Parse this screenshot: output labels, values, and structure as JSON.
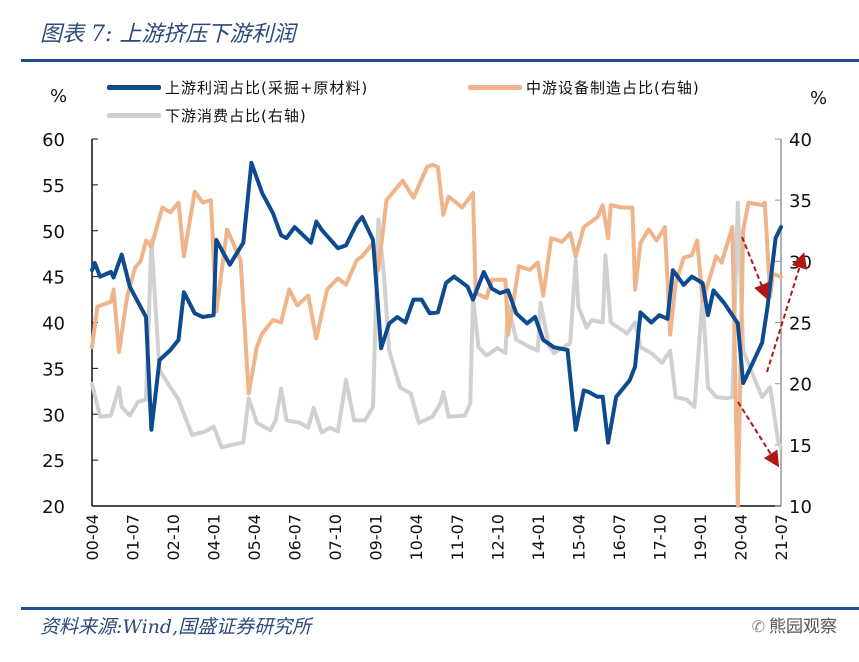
{
  "title": "图表 7:  上游挤压下游利润",
  "source": "资料来源:Wind,国盛证券研究所",
  "watermark": "熊园观察",
  "chart_data": {
    "type": "line",
    "title": "图表 7:  上游挤压下游利润",
    "left_unit": "%",
    "right_unit": "%",
    "left_ylim": [
      20,
      60
    ],
    "right_ylim": [
      10,
      40
    ],
    "left_ticks": [
      "20",
      "25",
      "30",
      "35",
      "40",
      "45",
      "50",
      "55",
      "60"
    ],
    "right_ticks": [
      "10",
      "15",
      "20",
      "25",
      "30",
      "35",
      "40"
    ],
    "x_range": [
      "2000-04",
      "2021-07"
    ],
    "x_ticks": [
      "00-04",
      "01-07",
      "02-10",
      "04-01",
      "05-04",
      "06-07",
      "07-10",
      "09-01",
      "10-04",
      "11-07",
      "12-10",
      "14-01",
      "15-04",
      "16-07",
      "17-10",
      "19-01",
      "20-04",
      "21-07"
    ],
    "grid": false,
    "legend_position": "top",
    "annotations": "three red dashed arrows near 2020-2021",
    "series": [
      {
        "name": "上游利润占比(采掘+原材料)",
        "axis": "left",
        "color": "#0d4a8f",
        "points": [
          [
            "2000-04",
            45.7
          ],
          [
            "2000-05",
            46.5
          ],
          [
            "2000-07",
            45.0
          ],
          [
            "2000-11",
            45.5
          ],
          [
            "2000-12",
            44.9
          ],
          [
            "2001-03",
            47.4
          ],
          [
            "2001-06",
            43.9
          ],
          [
            "2001-10",
            41.7
          ],
          [
            "2001-12",
            40.6
          ],
          [
            "2002-02",
            28.3
          ],
          [
            "2002-05",
            35.9
          ],
          [
            "2002-09",
            37.0
          ],
          [
            "2002-12",
            38.1
          ],
          [
            "2003-02",
            43.3
          ],
          [
            "2003-06",
            41.0
          ],
          [
            "2003-09",
            40.6
          ],
          [
            "2004-01",
            40.8
          ],
          [
            "2004-02",
            49.0
          ],
          [
            "2004-07",
            46.3
          ],
          [
            "2004-12",
            48.7
          ],
          [
            "2005-03",
            57.4
          ],
          [
            "2005-07",
            54.1
          ],
          [
            "2005-11",
            51.9
          ],
          [
            "2006-02",
            49.5
          ],
          [
            "2006-04",
            49.2
          ],
          [
            "2006-07",
            50.4
          ],
          [
            "2007-01",
            48.7
          ],
          [
            "2007-03",
            51.0
          ],
          [
            "2007-05",
            50.1
          ],
          [
            "2007-11",
            48.1
          ],
          [
            "2008-02",
            48.4
          ],
          [
            "2008-06",
            50.8
          ],
          [
            "2008-08",
            51.5
          ],
          [
            "2008-12",
            49.0
          ],
          [
            "2009-03",
            37.2
          ],
          [
            "2009-06",
            39.9
          ],
          [
            "2009-09",
            40.6
          ],
          [
            "2009-12",
            40.0
          ],
          [
            "2010-03",
            42.5
          ],
          [
            "2010-06",
            42.5
          ],
          [
            "2010-09",
            41.0
          ],
          [
            "2010-12",
            41.1
          ],
          [
            "2011-03",
            44.3
          ],
          [
            "2011-06",
            45.0
          ],
          [
            "2011-11",
            43.9
          ],
          [
            "2012-01",
            42.5
          ],
          [
            "2012-05",
            45.5
          ],
          [
            "2012-08",
            43.7
          ],
          [
            "2012-11",
            43.2
          ],
          [
            "2013-02",
            43.5
          ],
          [
            "2013-05",
            41.0
          ],
          [
            "2013-09",
            39.9
          ],
          [
            "2013-12",
            40.6
          ],
          [
            "2014-03",
            38.1
          ],
          [
            "2014-07",
            37.3
          ],
          [
            "2014-12",
            37.0
          ],
          [
            "2015-03",
            28.3
          ],
          [
            "2015-06",
            32.6
          ],
          [
            "2015-08",
            32.4
          ],
          [
            "2015-11",
            31.9
          ],
          [
            "2016-01",
            31.9
          ],
          [
            "2016-03",
            26.9
          ],
          [
            "2016-06",
            31.9
          ],
          [
            "2016-11",
            33.7
          ],
          [
            "2017-01",
            35.2
          ],
          [
            "2017-03",
            41.1
          ],
          [
            "2017-07",
            40.0
          ],
          [
            "2017-10",
            40.8
          ],
          [
            "2018-01",
            40.4
          ],
          [
            "2018-03",
            45.7
          ],
          [
            "2018-07",
            44.1
          ],
          [
            "2018-10",
            45.0
          ],
          [
            "2019-02",
            44.3
          ],
          [
            "2019-04",
            40.8
          ],
          [
            "2019-06",
            43.5
          ],
          [
            "2019-10",
            42.1
          ],
          [
            "2020-03",
            39.9
          ],
          [
            "2020-05",
            33.4
          ],
          [
            "2020-09",
            35.9
          ],
          [
            "2020-12",
            37.8
          ],
          [
            "2021-02",
            41.7
          ],
          [
            "2021-05",
            49.2
          ],
          [
            "2021-07",
            50.4
          ]
        ]
      },
      {
        "name": "中游设备制造占比(右轴)",
        "axis": "right",
        "color": "#f0b48a",
        "points": [
          [
            "2000-04",
            23.0
          ],
          [
            "2000-06",
            26.3
          ],
          [
            "2000-11",
            26.7
          ],
          [
            "2000-12",
            27.7
          ],
          [
            "2001-02",
            22.6
          ],
          [
            "2001-05",
            27.1
          ],
          [
            "2001-08",
            29.5
          ],
          [
            "2001-10",
            30.0
          ],
          [
            "2001-12",
            31.7
          ],
          [
            "2002-02",
            31.2
          ],
          [
            "2002-04",
            32.8
          ],
          [
            "2002-06",
            34.4
          ],
          [
            "2002-09",
            34.0
          ],
          [
            "2002-12",
            34.8
          ],
          [
            "2003-02",
            30.4
          ],
          [
            "2003-06",
            35.7
          ],
          [
            "2003-09",
            34.8
          ],
          [
            "2003-12",
            35.0
          ],
          [
            "2004-02",
            25.9
          ],
          [
            "2004-06",
            32.6
          ],
          [
            "2004-11",
            30.1
          ],
          [
            "2005-02",
            19.2
          ],
          [
            "2005-05",
            23.0
          ],
          [
            "2005-07",
            24.1
          ],
          [
            "2005-11",
            25.2
          ],
          [
            "2006-02",
            25.0
          ],
          [
            "2006-05",
            27.7
          ],
          [
            "2006-08",
            26.4
          ],
          [
            "2006-12",
            27.2
          ],
          [
            "2007-03",
            23.7
          ],
          [
            "2007-07",
            27.7
          ],
          [
            "2007-11",
            28.6
          ],
          [
            "2008-02",
            28.1
          ],
          [
            "2008-06",
            30.1
          ],
          [
            "2008-08",
            30.4
          ],
          [
            "2008-12",
            31.5
          ],
          [
            "2009-02",
            29.3
          ],
          [
            "2009-05",
            35.0
          ],
          [
            "2009-11",
            36.6
          ],
          [
            "2010-03",
            35.2
          ],
          [
            "2010-08",
            37.7
          ],
          [
            "2010-10",
            37.9
          ],
          [
            "2010-12",
            37.7
          ],
          [
            "2011-02",
            33.8
          ],
          [
            "2011-04",
            35.3
          ],
          [
            "2011-09",
            34.4
          ],
          [
            "2012-01",
            35.6
          ],
          [
            "2012-02",
            27.4
          ],
          [
            "2012-06",
            27.0
          ],
          [
            "2012-08",
            28.5
          ],
          [
            "2013-01",
            28.5
          ],
          [
            "2013-02",
            24.0
          ],
          [
            "2013-06",
            29.6
          ],
          [
            "2013-10",
            29.3
          ],
          [
            "2014-01",
            29.9
          ],
          [
            "2014-03",
            27.2
          ],
          [
            "2014-06",
            31.9
          ],
          [
            "2014-10",
            31.6
          ],
          [
            "2015-01",
            32.3
          ],
          [
            "2015-03",
            30.4
          ],
          [
            "2015-06",
            32.8
          ],
          [
            "2015-11",
            33.6
          ],
          [
            "2016-01",
            34.6
          ],
          [
            "2016-03",
            31.9
          ],
          [
            "2016-04",
            34.6
          ],
          [
            "2016-08",
            34.4
          ],
          [
            "2016-12",
            34.4
          ],
          [
            "2017-01",
            27.7
          ],
          [
            "2017-03",
            31.5
          ],
          [
            "2017-06",
            32.6
          ],
          [
            "2017-09",
            31.7
          ],
          [
            "2017-12",
            32.8
          ],
          [
            "2018-02",
            24.0
          ],
          [
            "2018-04",
            28.2
          ],
          [
            "2018-07",
            30.3
          ],
          [
            "2018-10",
            30.5
          ],
          [
            "2018-12",
            31.7
          ],
          [
            "2019-02",
            26.8
          ],
          [
            "2019-04",
            28.2
          ],
          [
            "2019-07",
            30.4
          ],
          [
            "2019-09",
            29.9
          ],
          [
            "2020-01",
            32.8
          ],
          [
            "2020-03",
            10.0
          ],
          [
            "2020-05",
            32.6
          ],
          [
            "2020-07",
            34.8
          ],
          [
            "2020-12",
            34.6
          ],
          [
            "2021-01",
            34.8
          ],
          [
            "2021-03",
            27.1
          ],
          [
            "2021-04",
            29.0
          ],
          [
            "2021-07",
            28.7
          ]
        ]
      },
      {
        "name": "下游消费占比(右轴)",
        "axis": "right",
        "color": "#d0d0d0",
        "points": [
          [
            "2000-04",
            20.0
          ],
          [
            "2000-07",
            17.3
          ],
          [
            "2000-11",
            17.4
          ],
          [
            "2001-02",
            19.7
          ],
          [
            "2001-03",
            18.1
          ],
          [
            "2001-06",
            17.4
          ],
          [
            "2001-09",
            18.5
          ],
          [
            "2001-12",
            18.7
          ],
          [
            "2002-02",
            31.7
          ],
          [
            "2002-05",
            21.1
          ],
          [
            "2002-09",
            19.7
          ],
          [
            "2002-12",
            18.7
          ],
          [
            "2003-05",
            15.8
          ],
          [
            "2003-10",
            16.1
          ],
          [
            "2004-01",
            16.5
          ],
          [
            "2004-04",
            14.8
          ],
          [
            "2004-10",
            15.1
          ],
          [
            "2004-12",
            15.2
          ],
          [
            "2005-02",
            18.8
          ],
          [
            "2005-05",
            16.8
          ],
          [
            "2005-10",
            16.2
          ],
          [
            "2005-12",
            17.0
          ],
          [
            "2006-02",
            19.6
          ],
          [
            "2006-04",
            17.0
          ],
          [
            "2006-09",
            16.8
          ],
          [
            "2006-12",
            16.4
          ],
          [
            "2007-02",
            18.0
          ],
          [
            "2007-05",
            16.0
          ],
          [
            "2007-08",
            16.4
          ],
          [
            "2007-11",
            16.1
          ],
          [
            "2008-02",
            20.3
          ],
          [
            "2008-05",
            17.0
          ],
          [
            "2008-09",
            17.0
          ],
          [
            "2008-12",
            18.1
          ],
          [
            "2009-02",
            33.4
          ],
          [
            "2009-04",
            29.0
          ],
          [
            "2009-06",
            22.7
          ],
          [
            "2009-10",
            19.7
          ],
          [
            "2010-02",
            19.2
          ],
          [
            "2010-05",
            16.8
          ],
          [
            "2010-10",
            17.3
          ],
          [
            "2011-01",
            18.4
          ],
          [
            "2011-02",
            19.3
          ],
          [
            "2011-04",
            17.3
          ],
          [
            "2011-10",
            17.4
          ],
          [
            "2011-12",
            18.4
          ],
          [
            "2012-01",
            27.1
          ],
          [
            "2012-03",
            23.0
          ],
          [
            "2012-06",
            22.3
          ],
          [
            "2012-10",
            22.9
          ],
          [
            "2013-01",
            22.5
          ],
          [
            "2013-02",
            26.4
          ],
          [
            "2013-05",
            23.6
          ],
          [
            "2013-10",
            23.0
          ],
          [
            "2014-01",
            22.7
          ],
          [
            "2014-02",
            26.6
          ],
          [
            "2014-05",
            23.2
          ],
          [
            "2014-07",
            22.5
          ],
          [
            "2014-10",
            22.9
          ],
          [
            "2015-01",
            23.3
          ],
          [
            "2015-03",
            30.1
          ],
          [
            "2015-04",
            26.3
          ],
          [
            "2015-07",
            24.6
          ],
          [
            "2015-09",
            25.2
          ],
          [
            "2016-01",
            25.0
          ],
          [
            "2016-02",
            30.5
          ],
          [
            "2016-04",
            25.0
          ],
          [
            "2016-10",
            24.1
          ],
          [
            "2017-01",
            25.0
          ],
          [
            "2017-03",
            23.0
          ],
          [
            "2017-07",
            22.5
          ],
          [
            "2017-11",
            21.7
          ],
          [
            "2018-02",
            22.7
          ],
          [
            "2018-04",
            18.9
          ],
          [
            "2018-08",
            18.7
          ],
          [
            "2018-11",
            18.1
          ],
          [
            "2019-02",
            27.1
          ],
          [
            "2019-04",
            19.7
          ],
          [
            "2019-07",
            18.9
          ],
          [
            "2019-11",
            18.8
          ],
          [
            "2020-01",
            18.9
          ],
          [
            "2020-03",
            34.8
          ],
          [
            "2020-05",
            22.7
          ],
          [
            "2020-09",
            20.5
          ],
          [
            "2020-12",
            18.9
          ],
          [
            "2021-03",
            19.7
          ],
          [
            "2021-06",
            15.2
          ],
          [
            "2021-07",
            14.8
          ]
        ]
      }
    ]
  },
  "colors": {
    "title": "#2b4a7a",
    "rule": "#1f4e8c",
    "arrow": "#b01818"
  }
}
